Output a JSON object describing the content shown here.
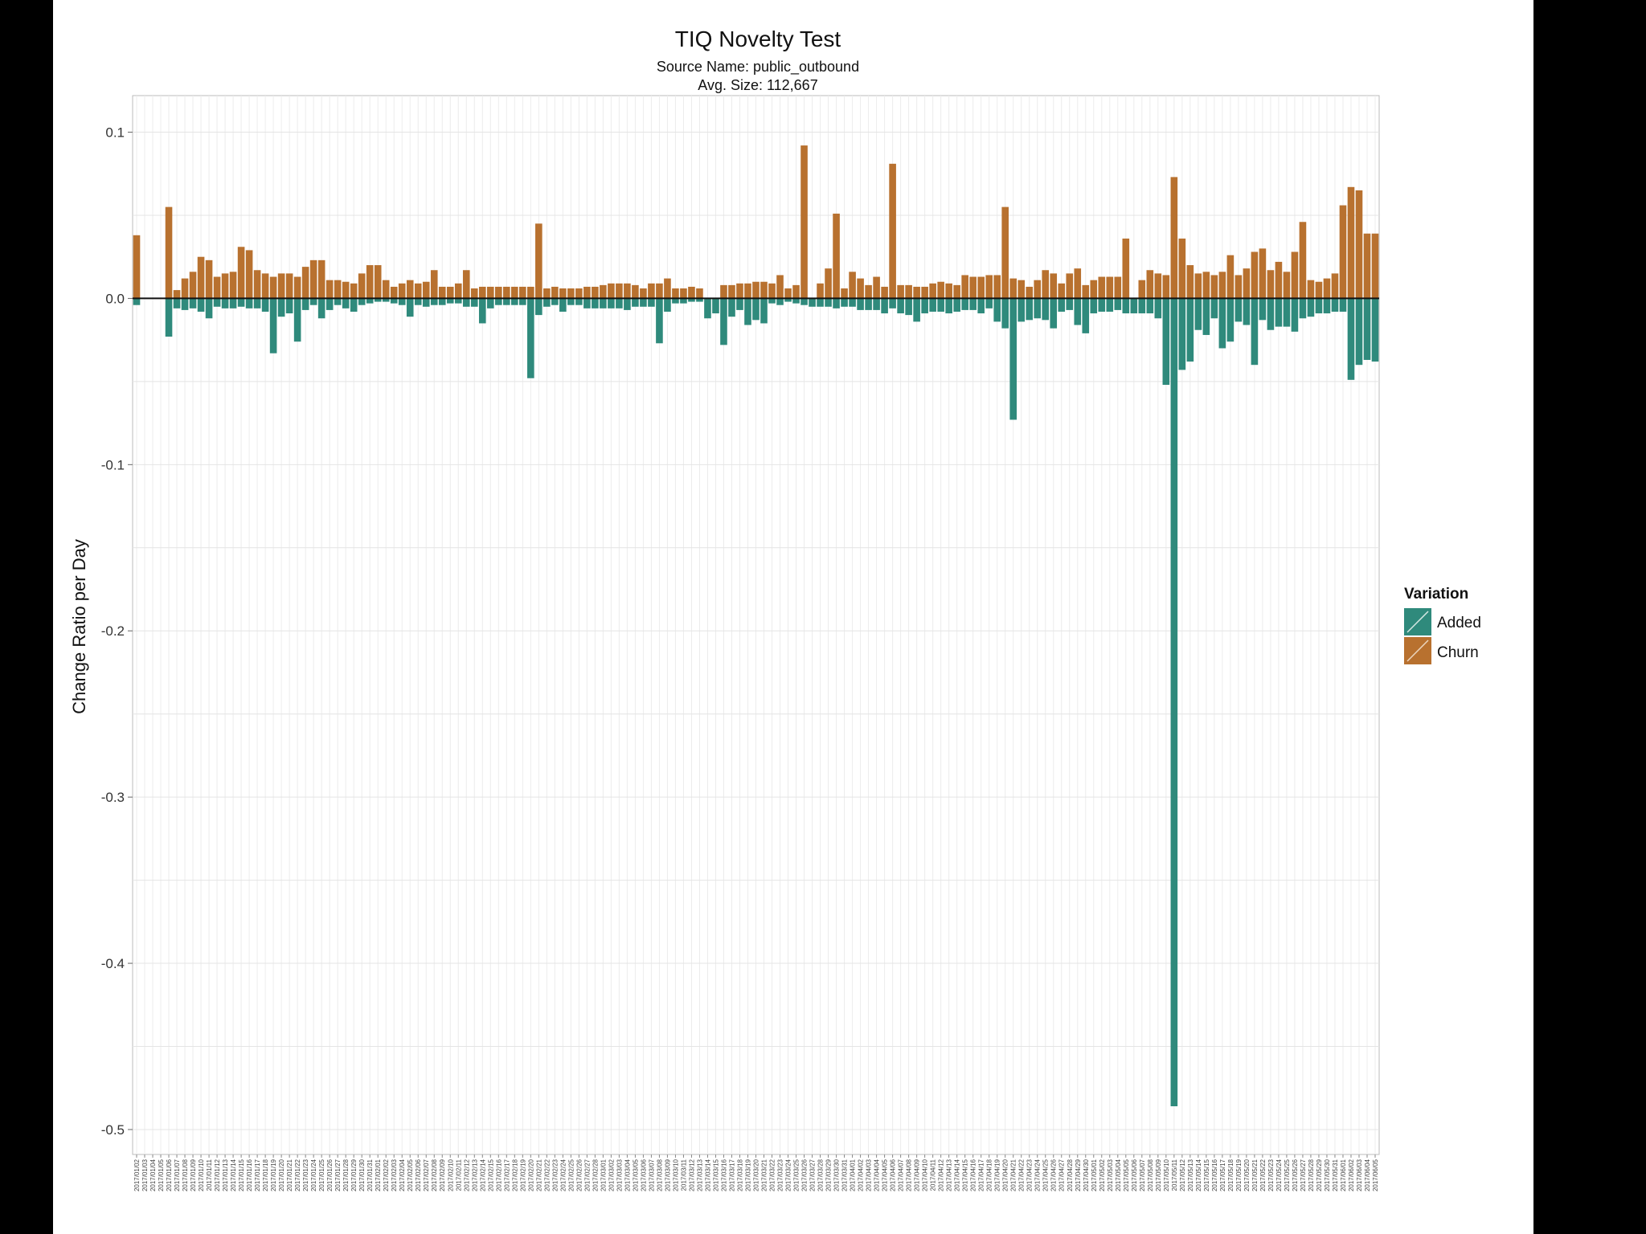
{
  "chart_data": {
    "type": "bar",
    "title": "TIQ Novelty Test",
    "subtitle_lines": [
      "Source Name: public_outbound",
      "Avg. Size: 112,667"
    ],
    "ylabel": "Change Ratio per Day",
    "xlabel": "",
    "ylim": [
      -0.515,
      0.122
    ],
    "yticks": [
      0.1,
      0.0,
      -0.1,
      -0.2,
      -0.3,
      -0.4,
      -0.5
    ],
    "ytick_labels": [
      "0.1",
      "0.0",
      "-0.1",
      "-0.2",
      "-0.3",
      "-0.4",
      "-0.5"
    ],
    "grid": true,
    "legend": {
      "title": "Variation",
      "position": "right",
      "entries": [
        {
          "label": "Added",
          "color": "#2f8a7c"
        },
        {
          "label": "Churn",
          "color": "#b8712f"
        }
      ]
    },
    "series": [
      {
        "name": "Churn",
        "color": "#b8712f",
        "values": [
          0.038,
          0.0,
          0.0,
          0.0,
          0.055,
          0.005,
          0.012,
          0.016,
          0.025,
          0.023,
          0.013,
          0.015,
          0.016,
          0.031,
          0.029,
          0.017,
          0.015,
          0.013,
          0.015,
          0.015,
          0.013,
          0.019,
          0.023,
          0.023,
          0.011,
          0.011,
          0.01,
          0.009,
          0.015,
          0.02,
          0.02,
          0.011,
          0.007,
          0.009,
          0.011,
          0.009,
          0.01,
          0.017,
          0.007,
          0.007,
          0.009,
          0.017,
          0.006,
          0.007,
          0.007,
          0.007,
          0.007,
          0.007,
          0.007,
          0.007,
          0.045,
          0.006,
          0.007,
          0.006,
          0.006,
          0.006,
          0.007,
          0.007,
          0.008,
          0.009,
          0.009,
          0.009,
          0.008,
          0.006,
          0.009,
          0.009,
          0.012,
          0.006,
          0.006,
          0.007,
          0.006,
          0.0,
          0.0,
          0.008,
          0.008,
          0.009,
          0.009,
          0.01,
          0.01,
          0.009,
          0.014,
          0.006,
          0.008,
          0.092,
          0.0,
          0.009,
          0.018,
          0.051,
          0.006,
          0.016,
          0.012,
          0.008,
          0.013,
          0.007,
          0.081,
          0.008,
          0.008,
          0.007,
          0.007,
          0.009,
          0.01,
          0.009,
          0.008,
          0.014,
          0.013,
          0.013,
          0.014,
          0.014,
          0.055,
          0.012,
          0.011,
          0.007,
          0.011,
          0.017,
          0.015,
          0.009,
          0.015,
          0.018,
          0.008,
          0.011,
          0.013,
          0.013,
          0.013,
          0.036,
          0.0,
          0.011,
          0.017,
          0.015,
          0.014,
          0.073,
          0.036,
          0.02,
          0.015,
          0.016,
          0.014,
          0.016,
          0.026,
          0.014,
          0.018,
          0.028,
          0.03,
          0.017,
          0.022,
          0.016,
          0.028,
          0.046,
          0.011,
          0.01,
          0.012,
          0.015,
          0.056,
          0.067,
          0.065,
          0.039,
          0.039
        ]
      },
      {
        "name": "Added",
        "color": "#2f8a7c",
        "values": [
          -0.004,
          0.0,
          0.0,
          0.0,
          -0.023,
          -0.006,
          -0.007,
          -0.006,
          -0.008,
          -0.012,
          -0.005,
          -0.006,
          -0.006,
          -0.005,
          -0.006,
          -0.006,
          -0.008,
          -0.033,
          -0.011,
          -0.009,
          -0.026,
          -0.007,
          -0.004,
          -0.012,
          -0.007,
          -0.004,
          -0.006,
          -0.008,
          -0.004,
          -0.003,
          -0.002,
          -0.002,
          -0.003,
          -0.004,
          -0.011,
          -0.004,
          -0.005,
          -0.004,
          -0.004,
          -0.003,
          -0.003,
          -0.005,
          -0.005,
          -0.015,
          -0.006,
          -0.004,
          -0.004,
          -0.004,
          -0.004,
          -0.048,
          -0.01,
          -0.005,
          -0.004,
          -0.008,
          -0.004,
          -0.004,
          -0.006,
          -0.006,
          -0.006,
          -0.006,
          -0.006,
          -0.007,
          -0.005,
          -0.005,
          -0.005,
          -0.027,
          -0.008,
          -0.003,
          -0.003,
          -0.002,
          -0.002,
          -0.012,
          -0.009,
          -0.028,
          -0.011,
          -0.007,
          -0.016,
          -0.013,
          -0.015,
          -0.003,
          -0.004,
          -0.002,
          -0.003,
          -0.004,
          -0.005,
          -0.005,
          -0.005,
          -0.006,
          -0.005,
          -0.005,
          -0.007,
          -0.007,
          -0.007,
          -0.009,
          -0.006,
          -0.009,
          -0.01,
          -0.014,
          -0.009,
          -0.008,
          -0.008,
          -0.009,
          -0.008,
          -0.007,
          -0.007,
          -0.009,
          -0.006,
          -0.014,
          -0.018,
          -0.073,
          -0.014,
          -0.013,
          -0.012,
          -0.013,
          -0.018,
          -0.008,
          -0.007,
          -0.016,
          -0.021,
          -0.009,
          -0.008,
          -0.008,
          -0.007,
          -0.009,
          -0.009,
          -0.009,
          -0.009,
          -0.012,
          -0.052,
          -0.486,
          -0.043,
          -0.038,
          -0.019,
          -0.022,
          -0.012,
          -0.03,
          -0.026,
          -0.014,
          -0.016,
          -0.04,
          -0.013,
          -0.019,
          -0.017,
          -0.017,
          -0.02,
          -0.012,
          -0.011,
          -0.009,
          -0.009,
          -0.008,
          -0.008,
          -0.049,
          -0.04,
          -0.037,
          -0.038
        ]
      }
    ],
    "categories": [
      "2017/01/02",
      "2017/01/03",
      "2017/01/04",
      "2017/01/05",
      "2017/01/06",
      "2017/01/07",
      "2017/01/08",
      "2017/01/09",
      "2017/01/10",
      "2017/01/11",
      "2017/01/12",
      "2017/01/13",
      "2017/01/14",
      "2017/01/15",
      "2017/01/16",
      "2017/01/17",
      "2017/01/18",
      "2017/01/19",
      "2017/01/20",
      "2017/01/21",
      "2017/01/22",
      "2017/01/23",
      "2017/01/24",
      "2017/01/25",
      "2017/01/26",
      "2017/01/27",
      "2017/01/28",
      "2017/01/29",
      "2017/01/30",
      "2017/01/31",
      "2017/02/01",
      "2017/02/02",
      "2017/02/03",
      "2017/02/04",
      "2017/02/05",
      "2017/02/06",
      "2017/02/07",
      "2017/02/08",
      "2017/02/09",
      "2017/02/10",
      "2017/02/11",
      "2017/02/12",
      "2017/02/13",
      "2017/02/14",
      "2017/02/15",
      "2017/02/16",
      "2017/02/17",
      "2017/02/18",
      "2017/02/19",
      "2017/02/20",
      "2017/02/21",
      "2017/02/22",
      "2017/02/23",
      "2017/02/24",
      "2017/02/25",
      "2017/02/26",
      "2017/02/27",
      "2017/02/28",
      "2017/03/01",
      "2017/03/02",
      "2017/03/03",
      "2017/03/04",
      "2017/03/05",
      "2017/03/06",
      "2017/03/07",
      "2017/03/08",
      "2017/03/09",
      "2017/03/10",
      "2017/03/11",
      "2017/03/12",
      "2017/03/13",
      "2017/03/14",
      "2017/03/15",
      "2017/03/16",
      "2017/03/17",
      "2017/03/18",
      "2017/03/19",
      "2017/03/20",
      "2017/03/21",
      "2017/03/22",
      "2017/03/23",
      "2017/03/24",
      "2017/03/25",
      "2017/03/26",
      "2017/03/27",
      "2017/03/28",
      "2017/03/29",
      "2017/03/30",
      "2017/03/31",
      "2017/04/01",
      "2017/04/02",
      "2017/04/03",
      "2017/04/04",
      "2017/04/05",
      "2017/04/06",
      "2017/04/07",
      "2017/04/08",
      "2017/04/09",
      "2017/04/10",
      "2017/04/11",
      "2017/04/12",
      "2017/04/13",
      "2017/04/14",
      "2017/04/15",
      "2017/04/16",
      "2017/04/17",
      "2017/04/18",
      "2017/04/19",
      "2017/04/20",
      "2017/04/21",
      "2017/04/22",
      "2017/04/23",
      "2017/04/24",
      "2017/04/25",
      "2017/04/26",
      "2017/04/27",
      "2017/04/28",
      "2017/04/29",
      "2017/04/30",
      "2017/05/01",
      "2017/05/02",
      "2017/05/03",
      "2017/05/04",
      "2017/05/05",
      "2017/05/06",
      "2017/05/07",
      "2017/05/08",
      "2017/05/09",
      "2017/05/10",
      "2017/05/11",
      "2017/05/12",
      "2017/05/13",
      "2017/05/14",
      "2017/05/15",
      "2017/05/16",
      "2017/05/17",
      "2017/05/18",
      "2017/05/19",
      "2017/05/20",
      "2017/05/21",
      "2017/05/22",
      "2017/05/23",
      "2017/05/24",
      "2017/05/25",
      "2017/05/26",
      "2017/05/27",
      "2017/05/28",
      "2017/05/29",
      "2017/05/30",
      "2017/05/31",
      "2017/06/01",
      "2017/06/02",
      "2017/06/03",
      "2017/06/04",
      "2017/06/05"
    ]
  }
}
